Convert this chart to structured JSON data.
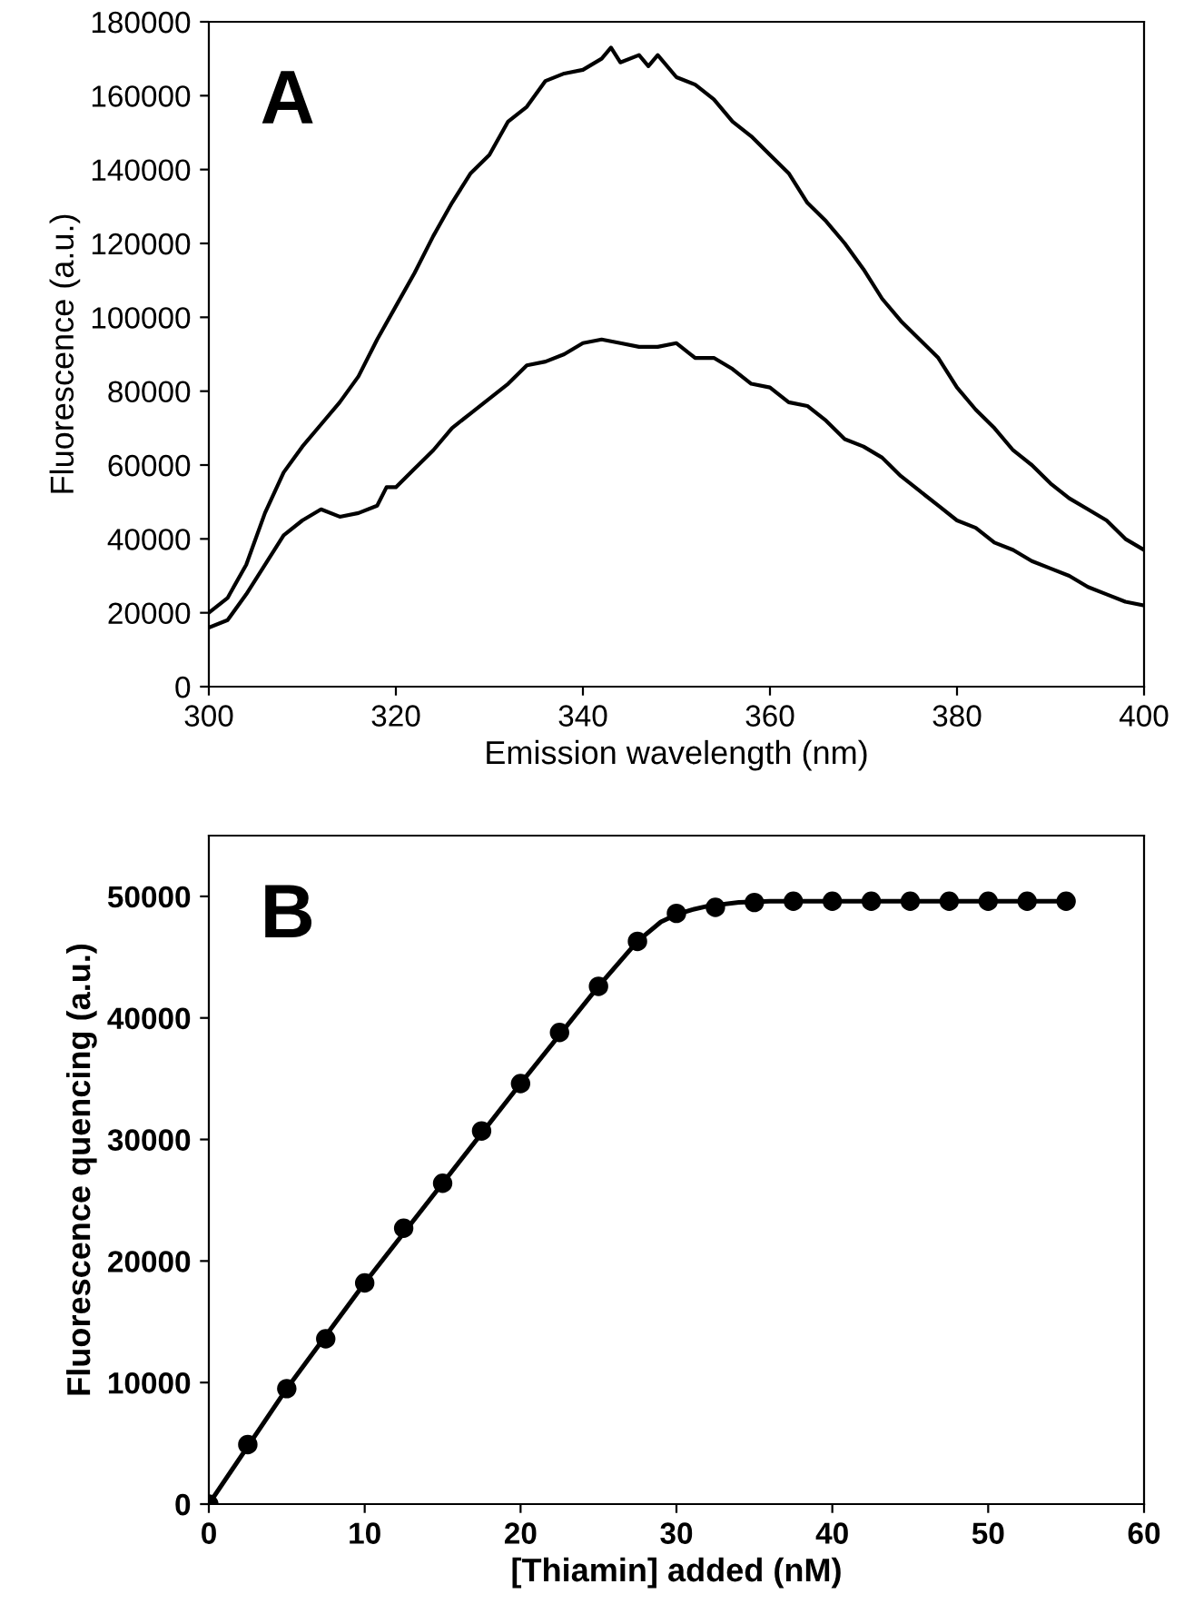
{
  "chart_data": [
    {
      "type": "line",
      "xlabel": "Emission wavelength (nm)",
      "ylabel": "Fluorescence (a.u.)",
      "annotations": [
        "A"
      ],
      "xlim": [
        300,
        400
      ],
      "xticks": [
        300,
        320,
        340,
        360,
        380,
        400
      ],
      "ylim": [
        0,
        180000
      ],
      "yticks": [
        0,
        20000,
        40000,
        60000,
        80000,
        100000,
        120000,
        140000,
        160000,
        180000
      ],
      "grid": false,
      "legend": false,
      "marker": "none",
      "line_style": "solid",
      "series": [
        {
          "color": "#000000",
          "x": [
            300,
            302,
            304,
            306,
            308,
            310,
            312,
            314,
            316,
            318,
            320,
            322,
            324,
            326,
            328,
            330,
            332,
            334,
            336,
            338,
            340,
            342,
            343,
            344,
            346,
            347,
            348,
            350,
            352,
            354,
            356,
            358,
            360,
            362,
            364,
            366,
            368,
            370,
            372,
            374,
            376,
            378,
            380,
            382,
            384,
            386,
            388,
            390,
            392,
            394,
            396,
            398,
            400
          ],
          "values": [
            20000,
            24000,
            33000,
            47000,
            58000,
            65000,
            71000,
            77000,
            84000,
            94000,
            103000,
            112000,
            122000,
            131000,
            139000,
            144000,
            153000,
            157000,
            164000,
            166000,
            167000,
            170000,
            173000,
            169000,
            171000,
            168000,
            171000,
            165000,
            163000,
            159000,
            153000,
            149000,
            144000,
            139000,
            131000,
            126000,
            120000,
            113000,
            105000,
            99000,
            94000,
            89000,
            81000,
            75000,
            70000,
            64000,
            60000,
            55000,
            51000,
            48000,
            45000,
            40000,
            37000
          ]
        },
        {
          "color": "#000000",
          "x": [
            300,
            302,
            304,
            306,
            308,
            310,
            312,
            314,
            316,
            318,
            319,
            320,
            322,
            324,
            326,
            328,
            330,
            332,
            334,
            336,
            338,
            340,
            342,
            344,
            346,
            348,
            350,
            352,
            354,
            356,
            358,
            360,
            362,
            364,
            366,
            368,
            370,
            372,
            374,
            376,
            378,
            380,
            382,
            384,
            386,
            388,
            390,
            392,
            394,
            396,
            398,
            400
          ],
          "values": [
            16000,
            18000,
            25000,
            33000,
            41000,
            45000,
            48000,
            46000,
            47000,
            49000,
            54000,
            54000,
            59000,
            64000,
            70000,
            74000,
            78000,
            82000,
            87000,
            88000,
            90000,
            93000,
            94000,
            93000,
            92000,
            92000,
            93000,
            89000,
            89000,
            86000,
            82000,
            81000,
            77000,
            76000,
            72000,
            67000,
            65000,
            62000,
            57000,
            53000,
            49000,
            45000,
            43000,
            39000,
            37000,
            34000,
            32000,
            30000,
            27000,
            25000,
            23000,
            22000
          ]
        }
      ]
    },
    {
      "type": "scatter",
      "xlabel": "[Thiamin] added (nM)",
      "ylabel": "Fluorescence quencing (a.u.)",
      "annotations": [
        "B"
      ],
      "xlim": [
        0,
        60
      ],
      "xticks": [
        0,
        10,
        20,
        30,
        40,
        50,
        60
      ],
      "ylim": [
        0,
        55000
      ],
      "yticks": [
        0,
        10000,
        20000,
        30000,
        40000,
        50000
      ],
      "grid": false,
      "legend": false,
      "series": [
        {
          "color": "#000000",
          "marker": "circle",
          "x": [
            0,
            2.5,
            5,
            7.5,
            10,
            12.5,
            15,
            17.5,
            20,
            22.5,
            25,
            27.5,
            30,
            32.5,
            35,
            37.5,
            40,
            42.5,
            45,
            47.5,
            50,
            52.5,
            55
          ],
          "values": [
            0,
            4900,
            9500,
            13600,
            18200,
            22700,
            26400,
            30700,
            34600,
            38800,
            42600,
            46300,
            48600,
            49100,
            49500,
            49600,
            49600,
            49600,
            49600,
            49600,
            49600,
            49600,
            49600
          ]
        },
        {
          "type": "line",
          "color": "#000000",
          "marker": "none",
          "x": [
            0,
            5,
            10,
            15,
            20,
            25,
            27.5,
            29,
            30,
            31,
            32,
            34,
            36,
            40,
            55
          ],
          "values": [
            0,
            9500,
            18200,
            26400,
            34600,
            42600,
            46300,
            47900,
            48500,
            48900,
            49200,
            49500,
            49600,
            49600,
            49600
          ]
        }
      ]
    }
  ]
}
